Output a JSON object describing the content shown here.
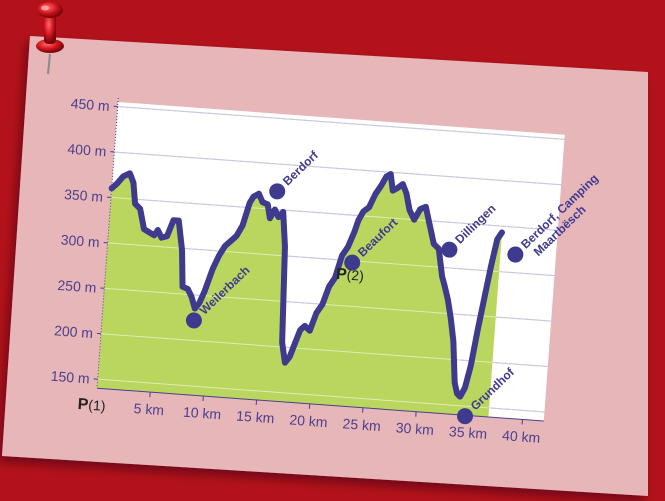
{
  "chart_data": {
    "type": "area",
    "title": "",
    "xlabel": "",
    "ylabel": "",
    "xlim": [
      0,
      42
    ],
    "ylim": [
      140,
      455
    ],
    "grid": true,
    "y_ticks": [
      {
        "value": 150,
        "label": "150 m"
      },
      {
        "value": 200,
        "label": "200 m"
      },
      {
        "value": 250,
        "label": "250 m"
      },
      {
        "value": 300,
        "label": "300 m"
      },
      {
        "value": 350,
        "label": "350 m"
      },
      {
        "value": 400,
        "label": "400 m"
      },
      {
        "value": 450,
        "label": "450 m"
      }
    ],
    "x_ticks": [
      {
        "value": 5,
        "label": "5 km"
      },
      {
        "value": 10,
        "label": "10 km"
      },
      {
        "value": 15,
        "label": "15 km"
      },
      {
        "value": 20,
        "label": "20 km"
      },
      {
        "value": 25,
        "label": "25 km"
      },
      {
        "value": 30,
        "label": "30 km"
      },
      {
        "value": 35,
        "label": "35 km"
      },
      {
        "value": 40,
        "label": "40 km"
      }
    ],
    "series": [
      {
        "x": [
          0,
          0.5,
          1,
          1.6,
          2,
          2.3,
          2.8,
          3.3,
          3.8,
          4.3,
          4.6,
          5,
          5.5,
          6,
          6.5,
          7,
          7.3,
          7.8,
          8.2,
          8.6,
          9,
          9.4,
          10,
          10.5,
          11,
          11.5,
          12,
          12.5,
          13,
          13.3,
          13.8,
          14.2,
          14.7,
          15,
          15.4,
          15.8,
          16.2,
          16.6,
          17,
          17.4,
          17.8,
          18.2,
          18.6,
          19,
          19.5,
          20,
          20.5,
          21,
          21.5,
          22,
          22.5,
          23,
          23.3,
          23.7,
          24.2,
          24.7,
          25.2,
          25.6,
          26,
          26.3,
          26.7,
          27.2,
          27.6,
          28,
          28.5,
          29,
          29.5,
          30,
          30.5,
          31,
          31.5,
          31.8,
          32.2,
          32.6,
          33,
          33.4,
          33.7,
          34,
          34.4,
          34.8,
          35.2,
          35.6,
          36,
          36.4,
          36.8
        ],
        "y": [
          360,
          366,
          374,
          378,
          368,
          345,
          340,
          318,
          315,
          312,
          318,
          310,
          312,
          330,
          330,
          298,
          258,
          256,
          248,
          235,
          242,
          255,
          280,
          295,
          306,
          312,
          318,
          330,
          355,
          362,
          366,
          357,
          355,
          340,
          350,
          342,
          348,
          310,
          205,
          183,
          190,
          205,
          220,
          225,
          220,
          240,
          250,
          270,
          280,
          305,
          315,
          332,
          345,
          355,
          360,
          375,
          385,
          395,
          398,
          380,
          383,
          388,
          378,
          360,
          350,
          362,
          365,
          345,
          325,
          320,
          290,
          280,
          265,
          245,
          220,
          175,
          163,
          160,
          170,
          195,
          235,
          270,
          305,
          335,
          343
        ]
      }
    ],
    "points_of_interest": [
      {
        "label": "Weilerbach",
        "x": 8.6,
        "y": 222
      },
      {
        "label": "Berdorf",
        "x": 15.5,
        "y": 370
      },
      {
        "label": "Beaufort",
        "x": 23.0,
        "y": 298
      },
      {
        "label": "Dillingen",
        "x": 32.0,
        "y": 320
      },
      {
        "label": "Berdorf, Camping",
        "label_line2": "Maartbësch",
        "x": 38.2,
        "y": 320
      },
      {
        "label": "Grundhof",
        "x": 34.6,
        "y": 139
      }
    ],
    "parking": [
      {
        "symbol": "P",
        "number": "(1)",
        "x": 0
      },
      {
        "symbol": "P",
        "number": "(2)",
        "x": 22.7,
        "y": 279
      }
    ]
  },
  "colors": {
    "background": "#b4121b",
    "paper": "#e6b6b9",
    "plot": "#ffffff",
    "area": "#b9d65e",
    "line": "#3e3a8e",
    "tick_text": "#4b3f8e"
  },
  "icons": {
    "pin": "push-pin-icon"
  }
}
